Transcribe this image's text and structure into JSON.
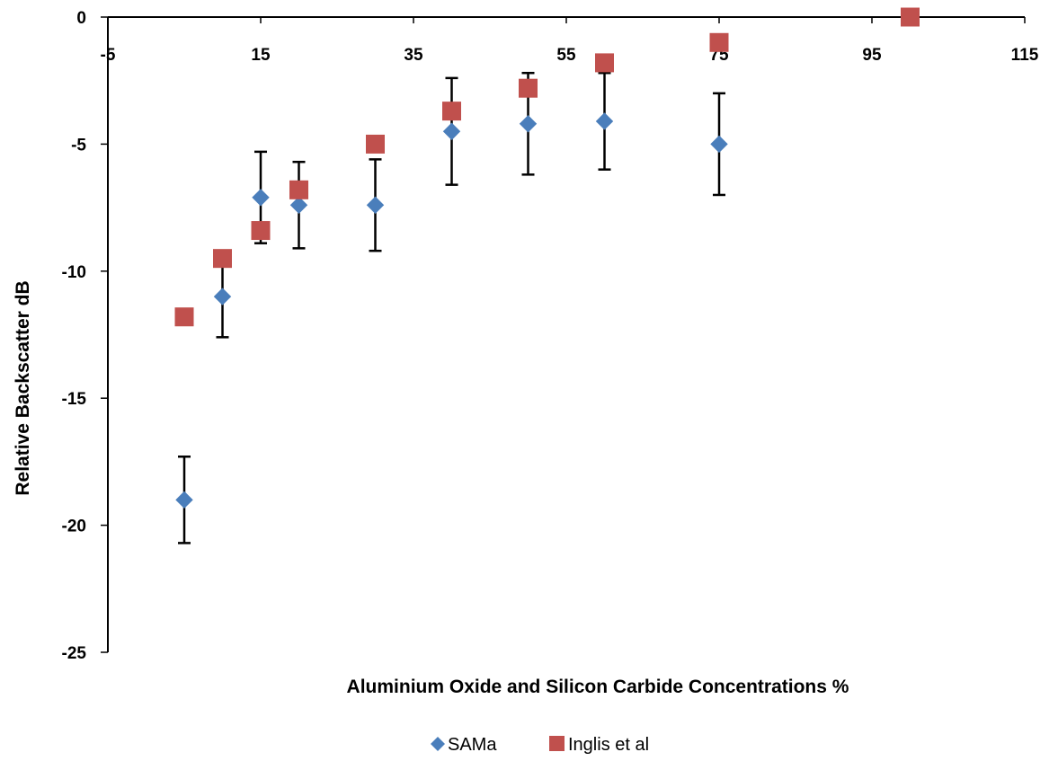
{
  "chart_data": {
    "type": "scatter",
    "title": "",
    "xlabel": "Aluminium Oxide and Silicon Carbide Concentrations %",
    "ylabel": "Relative Backscatter dB",
    "xlim": [
      -5,
      115
    ],
    "ylim": [
      -25,
      0
    ],
    "x_ticks": [
      -5,
      15,
      35,
      55,
      75,
      95,
      115
    ],
    "x_tick_labels": [
      "-5",
      "15",
      "35",
      "55",
      "75",
      "95",
      "115"
    ],
    "y_ticks": [
      0,
      -5,
      -10,
      -15,
      -20,
      -25
    ],
    "y_tick_labels": [
      "0",
      "-5",
      "-10",
      "-15",
      "-20",
      "-25"
    ],
    "x_axis_position": "top (crosses at y = 0)",
    "grid": false,
    "legend_position": "bottom",
    "series": [
      {
        "name": "SAMa",
        "marker": "diamond",
        "color": "#4a7ebb",
        "x": [
          5,
          10,
          15,
          20,
          30,
          40,
          50,
          60,
          75
        ],
        "y": [
          -19.0,
          -11.0,
          -7.1,
          -7.4,
          -7.4,
          -4.5,
          -4.2,
          -4.1,
          -5.0
        ],
        "y_err_low": [
          1.7,
          1.6,
          1.8,
          1.7,
          1.8,
          2.1,
          2.0,
          1.9,
          2.0
        ],
        "y_err_high": [
          1.7,
          1.6,
          1.8,
          1.7,
          1.8,
          2.1,
          2.0,
          1.9,
          2.0
        ]
      },
      {
        "name": "Inglis et al",
        "marker": "square",
        "color": "#c0504d",
        "x": [
          5,
          10,
          15,
          20,
          30,
          40,
          50,
          60,
          75,
          100
        ],
        "y": [
          -11.8,
          -9.5,
          -8.4,
          -6.8,
          -5.0,
          -3.7,
          -2.8,
          -1.8,
          -1.0,
          0.0
        ]
      }
    ]
  }
}
